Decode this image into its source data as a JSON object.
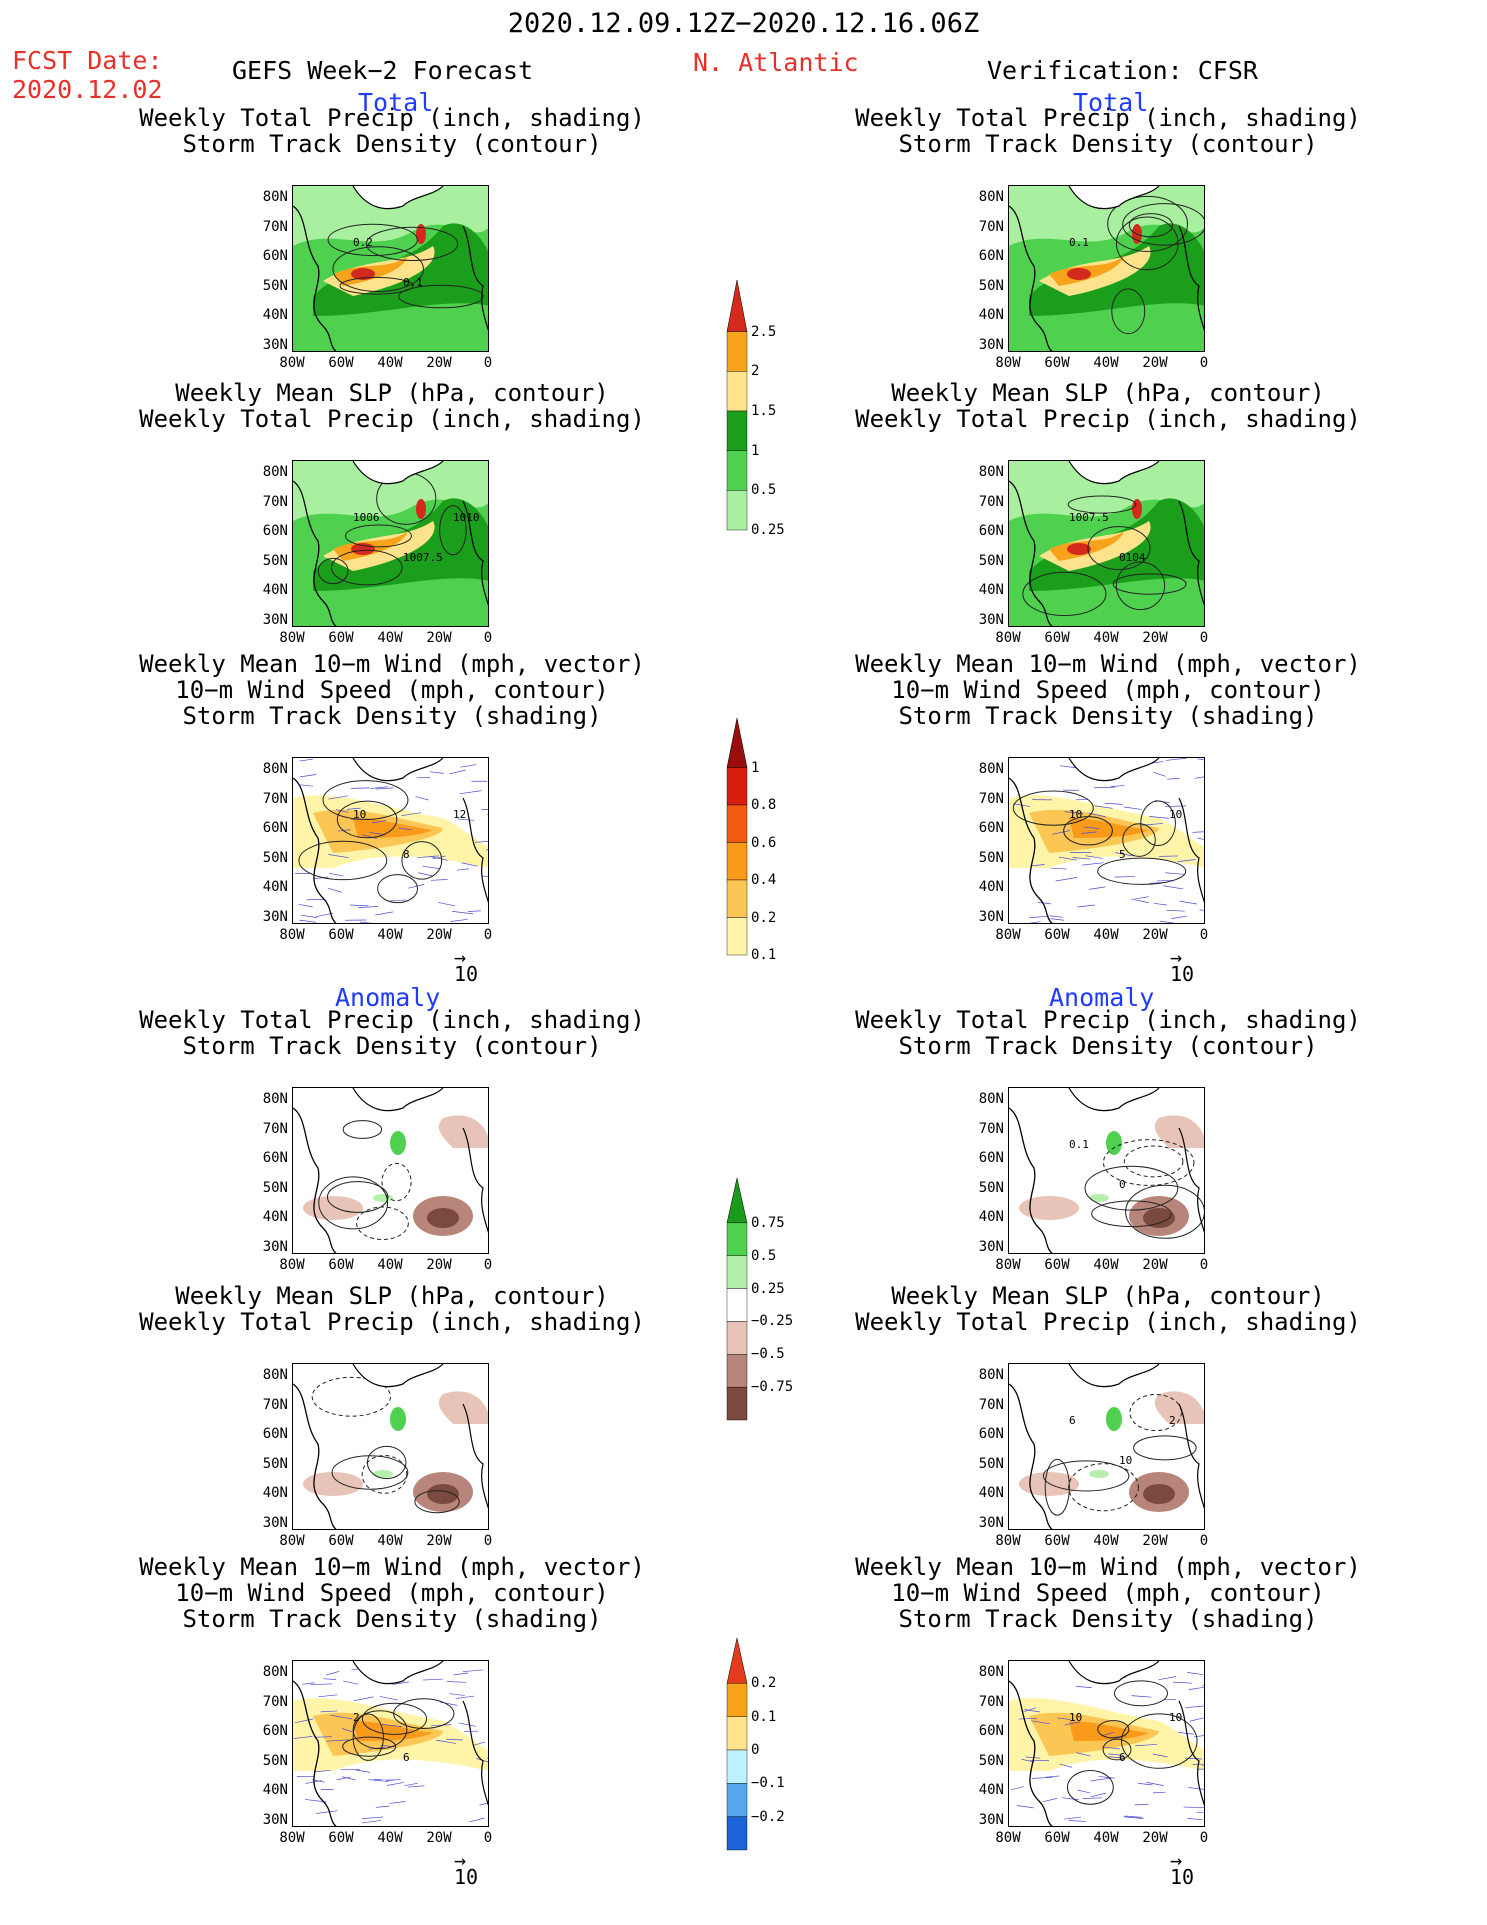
{
  "header": {
    "period": "2020.12.09.12Z−2020.12.16.06Z",
    "fcst_label": "FCST Date:",
    "fcst_date": "2020.12.02",
    "left_title": "GEFS Week−2 Forecast",
    "region": "N. Atlantic",
    "right_title": "Verification: CFSR",
    "total_label": "Total",
    "anomaly_label": "Anomaly"
  },
  "panel_titles": {
    "precip_track": [
      "Weekly Total Precip (inch, shading)",
      "Storm Track Density (contour)"
    ],
    "slp_precip": [
      "Weekly Mean SLP (hPa, contour)",
      "Weekly Total Precip (inch, shading)"
    ],
    "wind_track": [
      "Weekly Mean 10−m Wind (mph, vector)",
      "10−m Wind Speed (mph, contour)",
      "Storm Track Density (shading)"
    ]
  },
  "axes": {
    "lat_ticks": [
      "80N",
      "70N",
      "60N",
      "50N",
      "40N",
      "30N"
    ],
    "lon_ticks": [
      "80W",
      "60W",
      "40W",
      "20W",
      "0"
    ]
  },
  "vector_scale_label": "10",
  "colorbars": [
    {
      "name": "total-precip",
      "labels": [
        "2.5",
        "2",
        "1.5",
        "1",
        "0.5",
        "0.25"
      ],
      "colors": [
        "#d42a1d",
        "#f7a31c",
        "#ffe38c",
        "#1b9e1b",
        "#4fd14f",
        "#a8f0a0"
      ]
    },
    {
      "name": "total-track",
      "labels": [
        "1",
        "0.8",
        "0.6",
        "0.4",
        "0.2",
        "0.1"
      ],
      "colors": [
        "#9a0d0d",
        "#d81f0f",
        "#f25b12",
        "#f99a1a",
        "#fcc655",
        "#fff4a8"
      ]
    },
    {
      "name": "anom-precip",
      "labels": [
        "0.75",
        "0.5",
        "0.25",
        "−0.25",
        "−0.5",
        "−0.75"
      ],
      "colors": [
        "#1a9a1a",
        "#4fd14f",
        "#b4f0ac",
        "#ffffff",
        "#e8c4b8",
        "#b8857a",
        "#7a4a3f"
      ]
    },
    {
      "name": "anom-track",
      "labels": [
        "0.2",
        "0.1",
        "0",
        "−0.1",
        "−0.2"
      ],
      "colors": [
        "#e43a1e",
        "#f9a21c",
        "#ffe38c",
        "#bff2ff",
        "#58a8f0",
        "#1b63d6"
      ]
    }
  ],
  "contour_labels": {
    "fc_precip_track": [
      "0.2",
      "0.1"
    ],
    "fc_slp": [
      "1006",
      "1007.5",
      "1010"
    ],
    "fc_wind": [
      "10",
      "8",
      "12"
    ],
    "vf_precip_track": [
      "0.1"
    ],
    "vf_slp": [
      "1007.5",
      "0104"
    ],
    "vf_wind": [
      "10",
      "5",
      "10"
    ],
    "vfa_precip_track": [
      "0.1",
      "0"
    ],
    "vfa_slp": [
      "6",
      "10",
      "2"
    ],
    "fca_wind": [
      "2",
      "6"
    ],
    "vfa_wind": [
      "10",
      "6",
      "10",
      "0"
    ]
  },
  "colors": {
    "land_green": "#4fd14f",
    "dark_green": "#1b9e1b",
    "wind_vectors": "#4a4ad8",
    "title_red": "#e8302a",
    "label_blue": "#1f3bff"
  }
}
